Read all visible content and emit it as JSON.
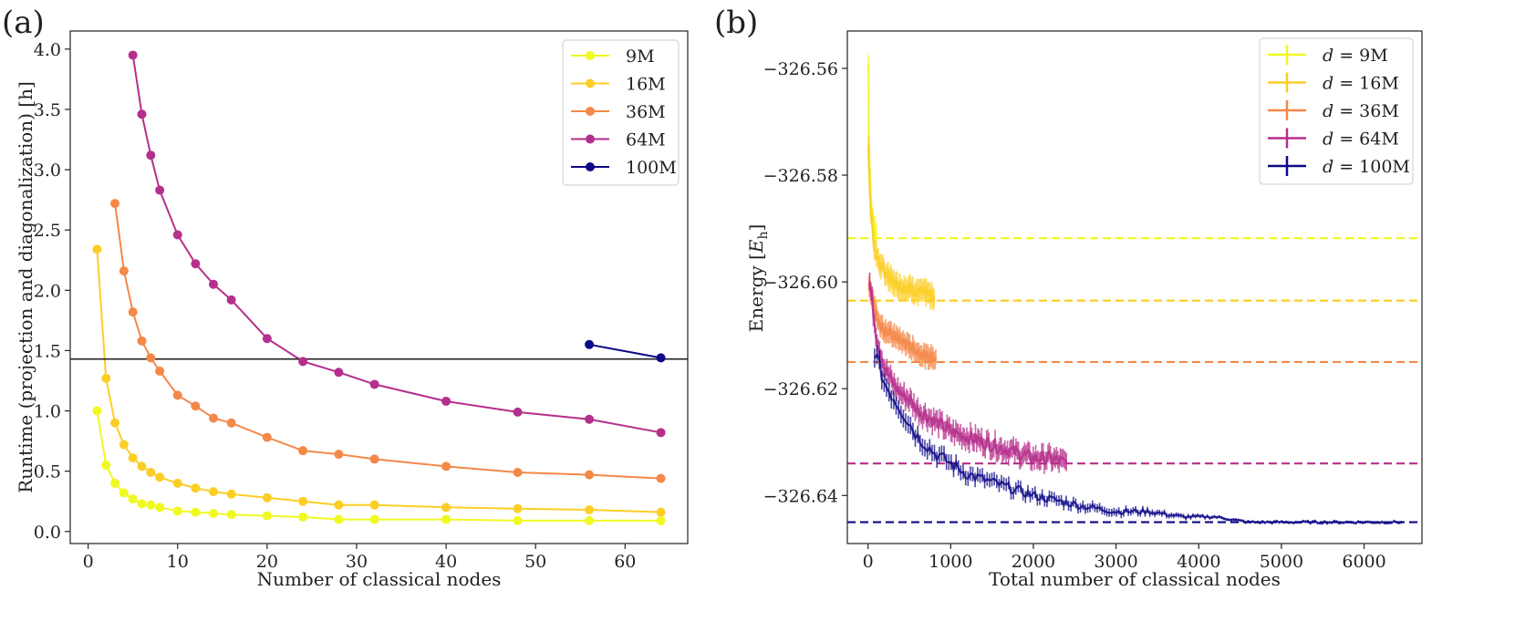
{
  "panels": {
    "a": {
      "label": "(a)"
    },
    "b": {
      "label": "(b)"
    }
  },
  "chart_data": [
    {
      "type": "line",
      "panel": "(a)",
      "xlabel": "Number of classical nodes",
      "ylabel": "Runtime (projection and diagonalization) [h]",
      "xlim": [
        -2,
        67
      ],
      "ylim": [
        -0.1,
        4.15
      ],
      "xticks": [
        0,
        10,
        20,
        30,
        40,
        50,
        60
      ],
      "xtick_labels": [
        "0",
        "10",
        "20",
        "30",
        "40",
        "50",
        "60"
      ],
      "yticks": [
        0.0,
        0.5,
        1.0,
        1.5,
        2.0,
        2.5,
        3.0,
        3.5,
        4.0
      ],
      "ytick_labels": [
        "0.0",
        "0.5",
        "1.0",
        "1.5",
        "2.0",
        "2.5",
        "3.0",
        "3.5",
        "4.0"
      ],
      "hline": 1.43,
      "legend_position": "top-right",
      "series": [
        {
          "name": "9M",
          "color": "#f0f921",
          "x": [
            1,
            2,
            3,
            4,
            5,
            6,
            7,
            8,
            10,
            12,
            14,
            16,
            20,
            24,
            28,
            32,
            40,
            48,
            56,
            64
          ],
          "y": [
            1.0,
            0.55,
            0.4,
            0.32,
            0.27,
            0.23,
            0.22,
            0.2,
            0.17,
            0.16,
            0.15,
            0.14,
            0.13,
            0.12,
            0.1,
            0.1,
            0.1,
            0.09,
            0.09,
            0.09
          ]
        },
        {
          "name": "16M",
          "color": "#fcce25",
          "x": [
            1,
            2,
            3,
            4,
            5,
            6,
            7,
            8,
            10,
            12,
            14,
            16,
            20,
            24,
            28,
            32,
            40,
            48,
            56,
            64
          ],
          "y": [
            2.34,
            1.27,
            0.9,
            0.72,
            0.61,
            0.54,
            0.49,
            0.45,
            0.4,
            0.36,
            0.33,
            0.31,
            0.28,
            0.25,
            0.22,
            0.22,
            0.2,
            0.19,
            0.18,
            0.16
          ]
        },
        {
          "name": "36M",
          "color": "#f48849",
          "x": [
            3,
            4,
            5,
            6,
            7,
            8,
            10,
            12,
            14,
            16,
            20,
            24,
            28,
            32,
            40,
            48,
            56,
            64
          ],
          "y": [
            2.72,
            2.16,
            1.82,
            1.58,
            1.44,
            1.33,
            1.13,
            1.04,
            0.94,
            0.9,
            0.78,
            0.67,
            0.64,
            0.6,
            0.54,
            0.49,
            0.47,
            0.44
          ]
        },
        {
          "name": "64M",
          "color": "#b52f8c",
          "x": [
            5,
            6,
            7,
            8,
            10,
            12,
            14,
            16,
            20,
            24,
            28,
            32,
            40,
            48,
            56,
            64
          ],
          "y": [
            3.95,
            3.46,
            3.12,
            2.83,
            2.46,
            2.22,
            2.05,
            1.92,
            1.6,
            1.41,
            1.32,
            1.22,
            1.08,
            0.99,
            0.93,
            0.82
          ]
        },
        {
          "name": "100M",
          "color": "#0d0887",
          "x": [
            56,
            64
          ],
          "y": [
            1.55,
            1.44
          ]
        }
      ]
    },
    {
      "type": "line",
      "panel": "(b)",
      "xlabel": "Total number of classical nodes",
      "ylabel": "Energy [E_h]",
      "ylabel_main": "Energy ",
      "ylabel_sym": "E",
      "ylabel_sub": "h",
      "xlim": [
        -250,
        6700
      ],
      "ylim": [
        -326.649,
        -326.553
      ],
      "xticks": [
        0,
        1000,
        2000,
        3000,
        4000,
        5000,
        6000
      ],
      "xtick_labels": [
        "0",
        "1000",
        "2000",
        "3000",
        "4000",
        "5000",
        "6000"
      ],
      "yticks": [
        -326.56,
        -326.58,
        -326.6,
        -326.62,
        -326.64
      ],
      "ytick_labels": [
        "−326.56",
        "−326.58",
        "−326.60",
        "−326.62",
        "−326.64"
      ],
      "legend_position": "top-right",
      "series": [
        {
          "name": "d = 9M",
          "label_var": "d",
          "label_val": "= 9M",
          "color": "#f0f921",
          "xmax": 100,
          "reference": -326.5918,
          "x": [
            5,
            10,
            20,
            30,
            40,
            50,
            60,
            70,
            80,
            90,
            100
          ],
          "y": [
            -326.559,
            -326.572,
            -326.579,
            -326.583,
            -326.586,
            -326.588,
            -326.589,
            -326.59,
            -326.59,
            -326.591,
            -326.591
          ]
        },
        {
          "name": "d = 16M",
          "label_var": "d",
          "label_val": "= 16M",
          "color": "#fcce25",
          "xmax": 800,
          "reference": -326.6035,
          "x": [
            5,
            15,
            30,
            50,
            75,
            100,
            150,
            200,
            300,
            400,
            500,
            600,
            700,
            800
          ],
          "y": [
            -326.574,
            -326.58,
            -326.586,
            -326.589,
            -326.593,
            -326.595,
            -326.597,
            -326.598,
            -326.6,
            -326.601,
            -326.601,
            -326.602,
            -326.602,
            -326.603
          ]
        },
        {
          "name": "d = 36M",
          "label_var": "d",
          "label_val": "= 36M",
          "color": "#f48849",
          "xmax": 820,
          "reference": -326.615,
          "x": [
            10,
            50,
            100,
            150,
            200,
            300,
            400,
            500,
            600,
            700,
            820
          ],
          "y": [
            -326.6,
            -326.603,
            -326.606,
            -326.608,
            -326.609,
            -326.61,
            -326.611,
            -326.612,
            -326.613,
            -326.614,
            -326.614
          ]
        },
        {
          "name": "d = 64M",
          "label_var": "d",
          "label_val": "= 64M",
          "color": "#b52f8c",
          "xmax": 2400,
          "reference": -326.634,
          "x": [
            20,
            100,
            200,
            300,
            400,
            500,
            600,
            700,
            800,
            900,
            1000,
            1200,
            1400,
            1600,
            1800,
            2000,
            2200,
            2400
          ],
          "y": [
            -326.6,
            -326.61,
            -326.616,
            -326.619,
            -326.621,
            -326.622,
            -326.624,
            -326.625,
            -326.626,
            -326.627,
            -326.628,
            -326.629,
            -326.63,
            -326.631,
            -326.632,
            -326.633,
            -326.633,
            -326.634
          ]
        },
        {
          "name": "d = 100M",
          "label_var": "d",
          "label_val": "= 100M",
          "color": "#0d0887",
          "xmax": 6450,
          "reference": -326.645,
          "x": [
            80,
            200,
            400,
            600,
            800,
            1000,
            1200,
            1400,
            1600,
            1800,
            2000,
            2300,
            2600,
            3000,
            3400,
            3800,
            4200,
            4600,
            5000,
            5400,
            5800,
            6450
          ],
          "y": [
            -326.613,
            -326.619,
            -326.624,
            -326.629,
            -326.632,
            -326.634,
            -326.636,
            -326.637,
            -326.638,
            -326.639,
            -326.64,
            -326.641,
            -326.642,
            -326.643,
            -326.643,
            -326.644,
            -326.644,
            -326.645,
            -326.645,
            -326.645,
            -326.645,
            -326.645
          ]
        }
      ]
    }
  ]
}
